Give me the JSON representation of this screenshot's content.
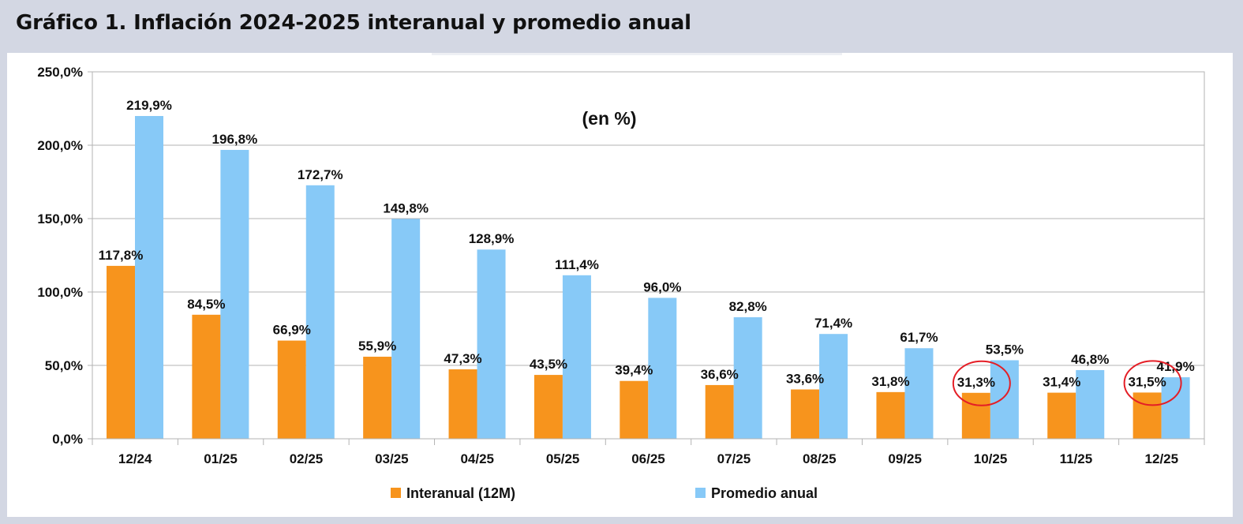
{
  "header": {
    "title": "Gráfico 1. Inflación 2024-2025 interanual y promedio anual"
  },
  "chart_data": {
    "type": "bar",
    "title": "",
    "subtitle": "(en %)",
    "xlabel": "",
    "ylabel": "",
    "ylim": [
      0,
      250
    ],
    "yticks": [
      0,
      50,
      100,
      150,
      200,
      250
    ],
    "ytick_labels": [
      "0,0%",
      "50,0%",
      "100,0%",
      "150,0%",
      "200,0%",
      "250,0%"
    ],
    "grid": true,
    "legend_position": "bottom",
    "categories": [
      "12/24",
      "01/25",
      "02/25",
      "03/25",
      "04/25",
      "05/25",
      "06/25",
      "07/25",
      "08/25",
      "09/25",
      "10/25",
      "11/25",
      "12/25"
    ],
    "series": [
      {
        "name": "Interanual (12M)",
        "color": "#f7941d",
        "values": [
          117.8,
          84.5,
          66.9,
          55.9,
          47.3,
          43.5,
          39.4,
          36.6,
          33.6,
          31.8,
          31.3,
          31.4,
          31.5
        ],
        "labels": [
          "117,8%",
          "84,5%",
          "66,9%",
          "55,9%",
          "47,3%",
          "43,5%",
          "39,4%",
          "36,6%",
          "33,6%",
          "31,8%",
          "31,3%",
          "31,4%",
          "31,5%"
        ]
      },
      {
        "name": "Promedio anual",
        "color": "#87c9f7",
        "values": [
          219.9,
          196.8,
          172.7,
          149.8,
          128.9,
          111.4,
          96.0,
          82.8,
          71.4,
          61.7,
          53.5,
          46.8,
          41.9
        ],
        "labels": [
          "219,9%",
          "196,8%",
          "172,7%",
          "149,8%",
          "128,9%",
          "111,4%",
          "96,0%",
          "82,8%",
          "71,4%",
          "61,7%",
          "53,5%",
          "46,8%",
          "41,9%"
        ]
      }
    ],
    "annotations": [
      {
        "type": "circle",
        "color": "#e41e26",
        "category": "10/25",
        "series": "Interanual (12M)"
      },
      {
        "type": "circle",
        "color": "#e41e26",
        "category": "12/25",
        "series": "Interanual (12M)"
      }
    ]
  }
}
